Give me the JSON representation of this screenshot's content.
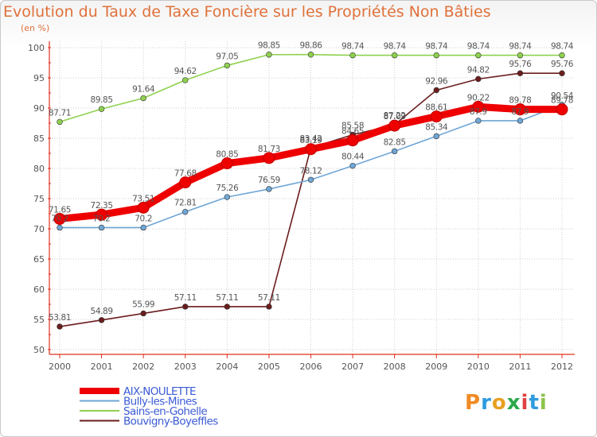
{
  "title": "Evolution du Taux de Taxe Foncière sur les Propriétés Non Bâties",
  "unit": "(en %)",
  "logo": "Proxiti",
  "colors": {
    "title": "#e0713a",
    "axis": "#e03020",
    "grid": "#cfcfcf",
    "text": "#555555",
    "legend_text": "#3a5bd6"
  },
  "chart_data": {
    "type": "line",
    "title": "Evolution du Taux de Taxe Foncière sur les Propriétés Non Bâties",
    "ylabel": "(en %)",
    "xlabel": "",
    "ylim": [
      50,
      100
    ],
    "yticks": [
      "50",
      "55",
      "60",
      "65",
      "70",
      "75",
      "80",
      "85",
      "90",
      "95",
      "100"
    ],
    "x": [
      "2000",
      "2001",
      "2002",
      "2003",
      "2004",
      "2005",
      "2006",
      "2007",
      "2008",
      "2009",
      "2010",
      "2011",
      "2012"
    ],
    "series": [
      {
        "name": "AIX-NOULETTE",
        "color": "#ee0000",
        "values": [
          71.65,
          72.35,
          73.51,
          77.68,
          80.85,
          81.73,
          83.19,
          84.65,
          87.09,
          88.61,
          90.22,
          89.78,
          89.78
        ],
        "labels": [
          "71.65",
          "72.35",
          "73.51",
          "77.68",
          "80.85",
          "81.73",
          "83.19",
          "84.65",
          "87.09",
          "88.61",
          "90.22",
          "89.78",
          "89.78"
        ]
      },
      {
        "name": "Bully-les-Mines",
        "color": "#6fa6d6",
        "values": [
          70.2,
          70.2,
          70.2,
          72.81,
          75.26,
          76.59,
          78.12,
          80.44,
          82.85,
          85.34,
          87.9,
          87.9,
          90.54
        ],
        "labels": [
          "70.2",
          "70.2",
          "70.2",
          "72.81",
          "75.26",
          "76.59",
          "78.12",
          "80.44",
          "82.85",
          "85.34",
          "87.9",
          "87.9",
          "90.54"
        ]
      },
      {
        "name": "Sains-en-Gohelle",
        "color": "#8fd14f",
        "values": [
          87.71,
          89.85,
          91.64,
          94.62,
          97.05,
          98.85,
          98.86,
          98.74,
          98.74,
          98.74,
          98.74,
          98.74,
          98.74
        ],
        "labels": [
          "87.71",
          "89.85",
          "91.64",
          "94.62",
          "97.05",
          "98.85",
          "98.86",
          "98.74",
          "98.74",
          "98.74",
          "98.74",
          "98.74",
          "98.74"
        ]
      },
      {
        "name": "Bouvigny-Boyeffles",
        "color": "#6b1d1d",
        "values": [
          53.81,
          54.89,
          55.99,
          57.11,
          57.11,
          57.11,
          83.42,
          85.58,
          87.22,
          92.96,
          94.82,
          95.76,
          95.76
        ],
        "labels": [
          "53.81",
          "54.89",
          "55.99",
          "57.11",
          "57.11",
          "57.11",
          "83.42",
          "85.58",
          "87.22",
          "92.96",
          "94.82",
          "95.76",
          "95.76"
        ]
      }
    ],
    "legend": [
      "AIX-NOULETTE",
      "Bully-les-Mines",
      "Sains-en-Gohelle",
      "Bouvigny-Boyeffles"
    ],
    "legend_position": "bottom-left"
  }
}
